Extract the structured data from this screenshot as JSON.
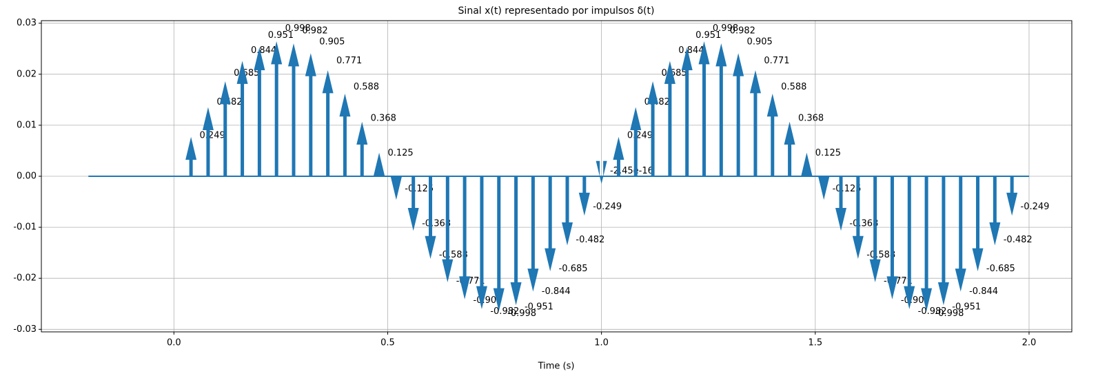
{
  "chart_data": {
    "type": "impulse",
    "title": "Sinal x(t) representado por impulsos δ(t)",
    "x_label": "Time (s)",
    "color": "#1f77b4",
    "grid": true,
    "x": [
      0.04,
      0.08,
      0.12,
      0.16,
      0.2,
      0.24,
      0.28,
      0.32,
      0.36,
      0.4,
      0.44,
      0.48,
      0.52,
      0.56,
      0.6,
      0.64,
      0.68,
      0.72,
      0.76,
      0.8,
      0.84,
      0.88,
      0.92,
      0.96,
      1.0,
      1.04,
      1.08,
      1.12,
      1.16,
      1.2,
      1.24,
      1.28,
      1.32,
      1.36,
      1.4,
      1.44,
      1.48,
      1.52,
      1.56,
      1.6,
      1.64,
      1.68,
      1.72,
      1.76,
      1.8,
      1.84,
      1.88,
      1.92,
      1.96
    ],
    "values": [
      0.249,
      0.482,
      0.685,
      0.844,
      0.951,
      0.998,
      0.982,
      0.905,
      0.771,
      0.588,
      0.368,
      0.125,
      -0.125,
      -0.368,
      -0.588,
      -0.771,
      -0.905,
      -0.982,
      -0.998,
      -0.951,
      -0.844,
      -0.685,
      -0.482,
      -0.249,
      -2.45e-16,
      0.249,
      0.482,
      0.685,
      0.844,
      0.951,
      0.998,
      0.982,
      0.905,
      0.771,
      0.588,
      0.368,
      0.125,
      -0.125,
      -0.368,
      -0.588,
      -0.771,
      -0.905,
      -0.982,
      -0.998,
      -0.951,
      -0.844,
      -0.685,
      -0.482,
      -0.249
    ],
    "baseline_x": [
      -0.2,
      2.0
    ],
    "xlim": [
      -0.31,
      2.1
    ],
    "xticks": [
      {
        "value": 0,
        "label": "0.0"
      },
      0.5,
      {
        "value": 1,
        "label": "1.0"
      },
      1.5,
      {
        "value": 2,
        "label": "2.0"
      }
    ],
    "ylim": [
      -0.0305,
      0.0305
    ],
    "yticks": [
      -0.03,
      -0.02,
      -0.01,
      {
        "value": 0,
        "label": "0.00"
      },
      0.01,
      0.02,
      0.03
    ]
  }
}
